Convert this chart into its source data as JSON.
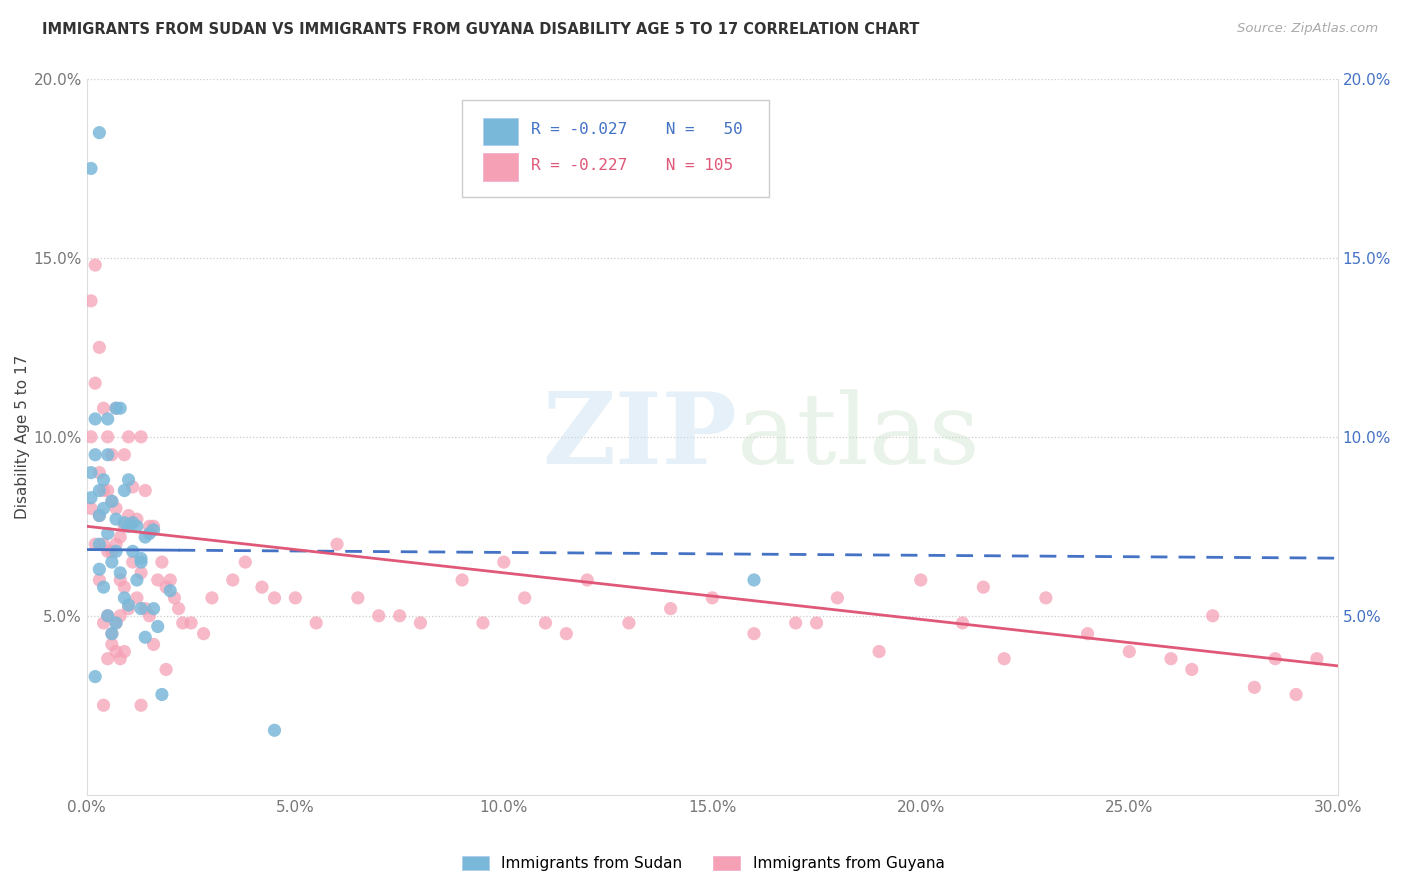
{
  "title": "IMMIGRANTS FROM SUDAN VS IMMIGRANTS FROM GUYANA DISABILITY AGE 5 TO 17 CORRELATION CHART",
  "source": "Source: ZipAtlas.com",
  "ylabel": "Disability Age 5 to 17",
  "xlim": [
    0.0,
    0.3
  ],
  "ylim": [
    0.0,
    0.2
  ],
  "xticks": [
    0.0,
    0.05,
    0.1,
    0.15,
    0.2,
    0.25,
    0.3
  ],
  "yticks": [
    0.0,
    0.05,
    0.1,
    0.15,
    0.2
  ],
  "sudan_color": "#7ab8d9",
  "guyana_color": "#f5a0b5",
  "sudan_line_color": "#4472c4",
  "guyana_line_color": "#e05878",
  "r_sudan": -0.027,
  "n_sudan": 50,
  "r_guyana": -0.227,
  "n_guyana": 105,
  "sudan_x": [
    0.001,
    0.003,
    0.001,
    0.001,
    0.002,
    0.002,
    0.003,
    0.003,
    0.003,
    0.003,
    0.004,
    0.004,
    0.004,
    0.005,
    0.005,
    0.005,
    0.005,
    0.006,
    0.006,
    0.006,
    0.007,
    0.007,
    0.007,
    0.007,
    0.008,
    0.008,
    0.009,
    0.009,
    0.009,
    0.01,
    0.01,
    0.01,
    0.011,
    0.011,
    0.012,
    0.012,
    0.013,
    0.013,
    0.014,
    0.014,
    0.015,
    0.016,
    0.016,
    0.017,
    0.018,
    0.02,
    0.002,
    0.013,
    0.045,
    0.16
  ],
  "sudan_y": [
    0.175,
    0.185,
    0.083,
    0.09,
    0.095,
    0.105,
    0.085,
    0.078,
    0.07,
    0.063,
    0.088,
    0.08,
    0.058,
    0.105,
    0.095,
    0.073,
    0.05,
    0.082,
    0.065,
    0.045,
    0.108,
    0.077,
    0.068,
    0.048,
    0.108,
    0.062,
    0.085,
    0.076,
    0.055,
    0.088,
    0.075,
    0.053,
    0.076,
    0.068,
    0.075,
    0.06,
    0.066,
    0.052,
    0.072,
    0.044,
    0.073,
    0.074,
    0.052,
    0.047,
    0.028,
    0.057,
    0.033,
    0.065,
    0.018,
    0.06
  ],
  "guyana_x": [
    0.001,
    0.001,
    0.001,
    0.002,
    0.002,
    0.002,
    0.003,
    0.003,
    0.003,
    0.003,
    0.004,
    0.004,
    0.004,
    0.004,
    0.005,
    0.005,
    0.005,
    0.005,
    0.006,
    0.006,
    0.006,
    0.006,
    0.007,
    0.007,
    0.007,
    0.007,
    0.008,
    0.008,
    0.008,
    0.008,
    0.009,
    0.009,
    0.009,
    0.01,
    0.01,
    0.01,
    0.011,
    0.011,
    0.012,
    0.012,
    0.013,
    0.013,
    0.014,
    0.014,
    0.015,
    0.015,
    0.016,
    0.017,
    0.018,
    0.019,
    0.02,
    0.021,
    0.022,
    0.023,
    0.025,
    0.028,
    0.03,
    0.035,
    0.038,
    0.042,
    0.045,
    0.05,
    0.055,
    0.06,
    0.065,
    0.07,
    0.075,
    0.08,
    0.09,
    0.095,
    0.1,
    0.105,
    0.11,
    0.115,
    0.12,
    0.13,
    0.14,
    0.15,
    0.16,
    0.17,
    0.175,
    0.18,
    0.19,
    0.2,
    0.21,
    0.215,
    0.22,
    0.23,
    0.24,
    0.25,
    0.26,
    0.265,
    0.27,
    0.28,
    0.285,
    0.29,
    0.295,
    0.007,
    0.013,
    0.004,
    0.005,
    0.006,
    0.009,
    0.016,
    0.019
  ],
  "guyana_y": [
    0.138,
    0.1,
    0.08,
    0.148,
    0.115,
    0.07,
    0.125,
    0.09,
    0.078,
    0.06,
    0.108,
    0.085,
    0.07,
    0.048,
    0.1,
    0.085,
    0.068,
    0.05,
    0.095,
    0.082,
    0.068,
    0.045,
    0.108,
    0.08,
    0.07,
    0.048,
    0.072,
    0.06,
    0.05,
    0.038,
    0.095,
    0.075,
    0.058,
    0.1,
    0.078,
    0.052,
    0.086,
    0.065,
    0.077,
    0.055,
    0.1,
    0.062,
    0.085,
    0.052,
    0.075,
    0.05,
    0.075,
    0.06,
    0.065,
    0.058,
    0.06,
    0.055,
    0.052,
    0.048,
    0.048,
    0.045,
    0.055,
    0.06,
    0.065,
    0.058,
    0.055,
    0.055,
    0.048,
    0.07,
    0.055,
    0.05,
    0.05,
    0.048,
    0.06,
    0.048,
    0.065,
    0.055,
    0.048,
    0.045,
    0.06,
    0.048,
    0.052,
    0.055,
    0.045,
    0.048,
    0.048,
    0.055,
    0.04,
    0.06,
    0.048,
    0.058,
    0.038,
    0.055,
    0.045,
    0.04,
    0.038,
    0.035,
    0.05,
    0.03,
    0.038,
    0.028,
    0.038,
    0.04,
    0.025,
    0.025,
    0.038,
    0.042,
    0.04,
    0.042,
    0.035
  ]
}
